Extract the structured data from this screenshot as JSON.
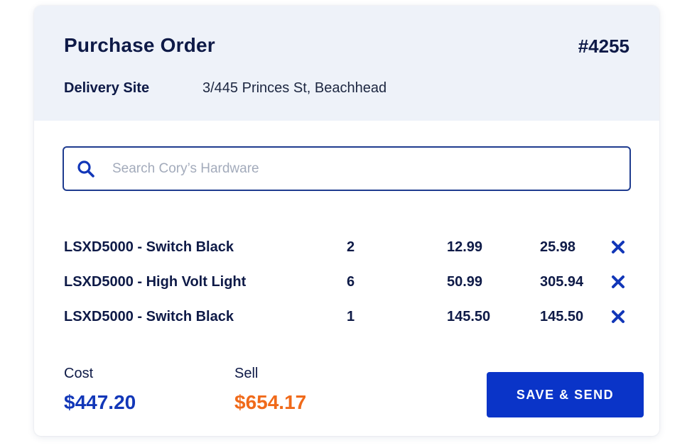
{
  "header": {
    "title": "Purchase Order",
    "order_number": "#4255",
    "delivery_label": "Delivery Site",
    "delivery_value": "3/445 Princes St, Beachhead"
  },
  "search": {
    "placeholder": "Search Cory’s Hardware",
    "value": "",
    "icon": "search-icon"
  },
  "line_items": [
    {
      "name": "LSXD5000 - Switch Black",
      "qty": "2",
      "unit_price": "12.99",
      "total": "25.98"
    },
    {
      "name": "LSXD5000 - High Volt Light",
      "qty": "6",
      "unit_price": "50.99",
      "total": "305.94"
    },
    {
      "name": "LSXD5000 - Switch Black",
      "qty": "1",
      "unit_price": "145.50",
      "total": "145.50"
    }
  ],
  "summary": {
    "cost_label": "Cost",
    "cost_value": "$447.20",
    "sell_label": "Sell",
    "sell_value": "$654.17"
  },
  "actions": {
    "save_label": "SAVE & SEND"
  },
  "colors": {
    "accent": "#0a34c8",
    "sell": "#f06a1a",
    "heading": "#0e1a47",
    "header_bg": "#eef2f9"
  }
}
